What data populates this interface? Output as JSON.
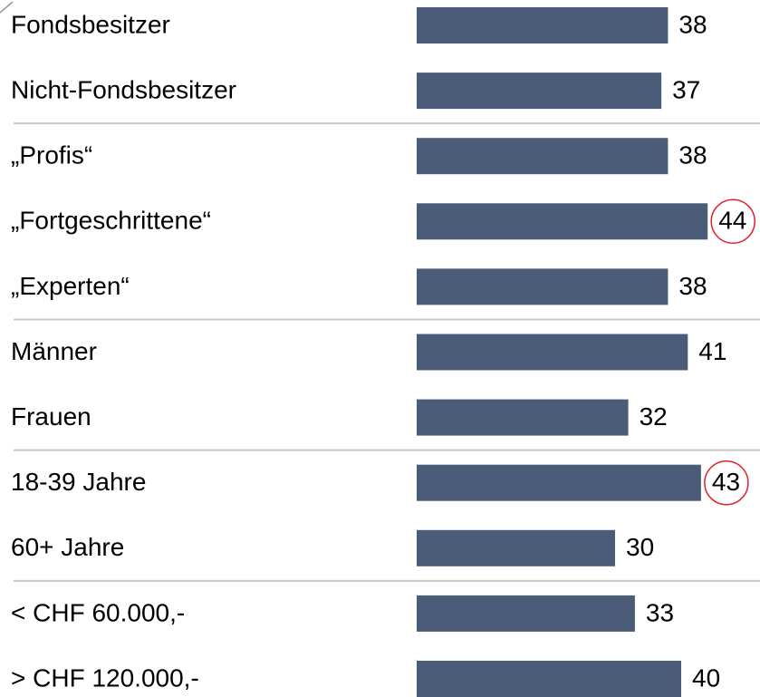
{
  "chart_data": {
    "type": "bar",
    "orientation": "horizontal",
    "categories": [
      "Fondsbesitzer",
      "Nicht-Fondsbesitzer",
      "„Profis“",
      "„Fortgeschrittene“",
      "„Experten“",
      "Männer",
      "Frauen",
      "18-39 Jahre",
      "60+ Jahre",
      "< CHF 60.000,-",
      "> CHF 120.000,-"
    ],
    "values": [
      38,
      37,
      38,
      44,
      38,
      41,
      32,
      43,
      30,
      33,
      40
    ],
    "color": "#4a5c78",
    "highlighted": [
      3,
      7
    ],
    "highlight_color": "#e0202a",
    "separators_after": [
      1,
      4,
      6,
      8
    ]
  }
}
